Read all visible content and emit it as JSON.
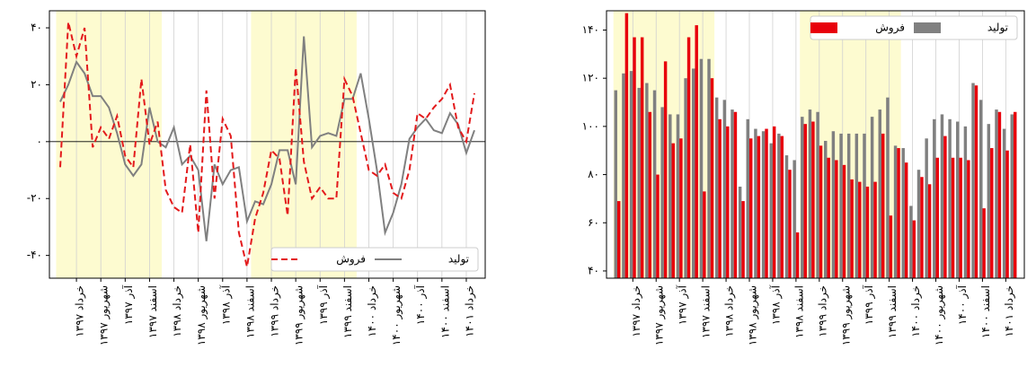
{
  "chart_data": [
    {
      "type": "line",
      "categories": [
        null,
        null,
        "خرداد ۱۳۹۷",
        null,
        null,
        "شهریور ۱۳۹۷",
        null,
        null,
        "آذر ۱۳۹۷",
        null,
        null,
        "اسفند ۱۳۹۷",
        null,
        null,
        "خرداد ۱۳۹۸",
        null,
        null,
        "شهریور ۱۳۹۸",
        null,
        null,
        "آذر ۱۳۹۸",
        null,
        null,
        "اسفند ۱۳۹۸",
        null,
        null,
        "خرداد ۱۳۹۹",
        null,
        null,
        "شهریور ۱۳۹۹",
        null,
        null,
        "آذر ۱۳۹۹",
        null,
        null,
        "اسفند ۱۳۹۹",
        null,
        null,
        "خرداد ۱۴۰۰",
        null,
        null,
        "شهریور ۱۴۰۰",
        null,
        null,
        "آذر ۱۴۰۰",
        null,
        null,
        "اسفند ۱۴۰۰",
        null,
        null,
        "خرداد ۱۴۰۱",
        null
      ],
      "series": [
        {
          "name": "تولید",
          "color": "#808080",
          "style": "solid",
          "values": [
            14,
            20,
            28,
            24,
            16,
            16,
            12,
            3,
            -8,
            -12,
            -8,
            12,
            0,
            -2,
            5,
            -8,
            -5,
            -10,
            -35,
            -8,
            -15,
            -10,
            -9,
            -28,
            -21,
            -22,
            -15,
            -3,
            -3,
            -15,
            37,
            -2,
            2,
            3,
            2,
            15,
            15,
            24,
            8,
            -10,
            -32,
            -25,
            -15,
            1,
            5,
            8,
            4,
            3,
            10,
            6,
            -4,
            4
          ]
        },
        {
          "name": "فروش",
          "color": "#e31a1c",
          "style": "dashed",
          "values": [
            -9,
            42,
            30,
            40,
            -2,
            5,
            1,
            9,
            -5,
            -9,
            22,
            -1,
            7,
            -17,
            -23,
            -25,
            -1,
            -32,
            18,
            -20,
            8,
            2,
            -32,
            -44,
            -27,
            -18,
            -3,
            -6,
            -26,
            26,
            -7,
            -20,
            -16,
            -20,
            -20,
            22,
            16,
            3,
            -10,
            -12,
            -8,
            -18,
            -20,
            -10,
            10,
            8,
            12,
            15,
            20,
            5,
            0,
            17
          ]
        }
      ],
      "ylim": [
        -48,
        46
      ],
      "yticks": [
        {
          "value": -40,
          "label": "-۴۰"
        },
        {
          "value": -20,
          "label": "-۲۰"
        },
        {
          "value": 0,
          "label": "۰"
        },
        {
          "value": 20,
          "label": "۲۰"
        },
        {
          "value": 40,
          "label": "۴۰"
        }
      ],
      "zero_line": true,
      "xgrid": true,
      "legend": "lower right",
      "highlight_spans": [
        [
          0,
          12
        ],
        [
          24,
          36
        ]
      ],
      "highlight_color": "#fdfbd0"
    },
    {
      "type": "bar",
      "categories": [
        null,
        null,
        "خرداد ۱۳۹۷",
        null,
        null,
        "شهریور ۱۳۹۷",
        null,
        null,
        "آذر ۱۳۹۷",
        null,
        null,
        "اسفند ۱۳۹۷",
        null,
        null,
        "خرداد ۱۳۹۸",
        null,
        null,
        "شهریور ۱۳۹۸",
        null,
        null,
        "آذر ۱۳۹۸",
        null,
        null,
        "اسفند ۱۳۹۸",
        null,
        null,
        "خرداد ۱۳۹۹",
        null,
        null,
        "شهریور ۱۳۹۹",
        null,
        null,
        "آذر ۱۳۹۹",
        null,
        null,
        "اسفند ۱۳۹۹",
        null,
        null,
        "خرداد ۱۴۰۰",
        null,
        null,
        "شهریور ۱۴۰۰",
        null,
        null,
        "آذر ۱۴۰۰",
        null,
        null,
        "اسفند ۱۴۰۰",
        null,
        null,
        "خرداد ۱۴۰۱",
        null
      ],
      "series": [
        {
          "name": "تولید",
          "color": "#808080",
          "values": [
            115,
            122,
            123,
            116,
            118,
            115,
            108,
            105,
            105,
            120,
            124,
            128,
            128,
            112,
            111,
            107,
            75,
            103,
            99,
            98,
            93,
            97,
            88,
            86,
            104,
            107,
            106,
            94,
            98,
            97,
            97,
            97,
            97,
            104,
            107,
            112,
            92,
            91,
            67,
            82,
            95,
            103,
            105,
            103,
            102,
            100,
            118,
            111,
            101,
            107,
            99,
            105
          ]
        },
        {
          "name": "فروش",
          "color": "#e8000b",
          "values": [
            69,
            147,
            137,
            137,
            106,
            80,
            127,
            93,
            95,
            137,
            142,
            73,
            120,
            103,
            100,
            106,
            69,
            95,
            96,
            99,
            100,
            96,
            82,
            56,
            101,
            102,
            92,
            87,
            86,
            84,
            78,
            77,
            75,
            77,
            97,
            63,
            91,
            85,
            61,
            79,
            76,
            87,
            96,
            87,
            87,
            86,
            117,
            66,
            91,
            106,
            90,
            106
          ]
        }
      ],
      "ylim": [
        37,
        148
      ],
      "yticks": [
        {
          "value": 40,
          "label": "۴۰"
        },
        {
          "value": 60,
          "label": "۶۰"
        },
        {
          "value": 80,
          "label": "۸۰"
        },
        {
          "value": 100,
          "label": "۱۰۰"
        },
        {
          "value": 120,
          "label": "۱۲۰"
        },
        {
          "value": 140,
          "label": "۱۴۰"
        }
      ],
      "xgrid": true,
      "legend": "upper right",
      "highlight_spans": [
        [
          0,
          12
        ],
        [
          24,
          36
        ]
      ],
      "highlight_color": "#fdfbd0"
    }
  ]
}
